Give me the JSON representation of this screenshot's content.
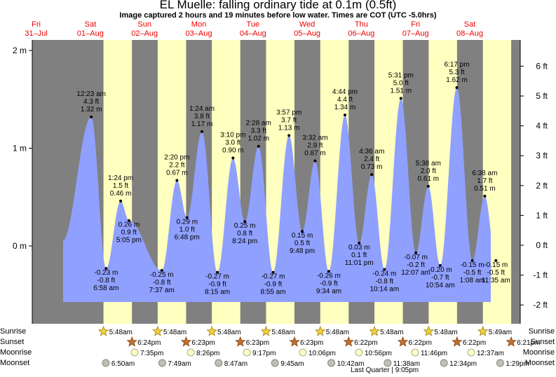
{
  "title": "EL Muelle: falling  ordinary tide at 0.1m (0.5ft)",
  "subtitle": "Image captured 2 hours and 19 minutes before low water. Times are COT (UTC -5.0hrs)",
  "colors": {
    "day": "#ffffc0",
    "night": "#808080",
    "water": "#90a0ff",
    "date_text": "#e00000"
  },
  "days": [
    {
      "name": "Fri",
      "date": "31–Jul"
    },
    {
      "name": "Sat",
      "date": "01–Aug"
    },
    {
      "name": "Sun",
      "date": "02–Aug"
    },
    {
      "name": "Mon",
      "date": "03–Aug"
    },
    {
      "name": "Tue",
      "date": "04–Aug"
    },
    {
      "name": "Wed",
      "date": "05–Aug"
    },
    {
      "name": "Thu",
      "date": "06–Aug"
    },
    {
      "name": "Fri",
      "date": "07–Aug"
    },
    {
      "name": "Sat",
      "date": "08–Aug"
    }
  ],
  "left_axis": {
    "unit": "m",
    "ticks": [
      "2 m",
      "1 m",
      "0 m"
    ]
  },
  "right_axis": {
    "unit": "ft",
    "ticks": [
      "6 ft",
      "5 ft",
      "4 ft",
      "3 ft",
      "2 ft",
      "1 ft",
      "0 ft",
      "-1 ft",
      "-2 ft"
    ]
  },
  "chart_data": {
    "type": "area",
    "ylabel_left": "m",
    "ylabel_right": "ft",
    "ylim_m": [
      -0.6,
      2.0
    ],
    "now_height_m": 0.1,
    "tides": [
      {
        "time": "6:58 am",
        "day": "01–Aug",
        "m": -0.23,
        "ft": "-0.8 ft",
        "m_label": "-0.23 m",
        "type": "low"
      },
      {
        "time": "12:23 am",
        "day": "01–Aug",
        "m": 1.32,
        "ft": "4.3 ft",
        "m_label": "1.32 m",
        "type": "high"
      },
      {
        "time": "1:24 pm",
        "day": "01–Aug",
        "m": 0.46,
        "ft": "1.5 ft",
        "m_label": "0.46 m",
        "type": "high"
      },
      {
        "time": "5:05 pm",
        "day": "01–Aug",
        "m": 0.26,
        "ft": "0.9 ft",
        "m_label": "0.26 m",
        "type": "low"
      },
      {
        "time": "7:37 am",
        "day": "02–Aug",
        "m": -0.25,
        "ft": "-0.8 ft",
        "m_label": "-0.25 m",
        "type": "low"
      },
      {
        "time": "2:20 pm",
        "day": "02–Aug",
        "m": 0.67,
        "ft": "2.2 ft",
        "m_label": "0.67 m",
        "type": "high"
      },
      {
        "time": "6:48 pm",
        "day": "02–Aug",
        "m": 0.29,
        "ft": "1.0 ft",
        "m_label": "0.29 m",
        "type": "low"
      },
      {
        "time": "1:24 am",
        "day": "03–Aug",
        "m": 1.17,
        "ft": "3.8 ft",
        "m_label": "1.17 m",
        "type": "high"
      },
      {
        "time": "8:15 am",
        "day": "03–Aug",
        "m": -0.27,
        "ft": "-0.9 ft",
        "m_label": "-0.27 m",
        "type": "low"
      },
      {
        "time": "3:10 pm",
        "day": "03–Aug",
        "m": 0.9,
        "ft": "3.0 ft",
        "m_label": "0.90 m",
        "type": "high"
      },
      {
        "time": "8:24 pm",
        "day": "03–Aug",
        "m": 0.25,
        "ft": "0.8 ft",
        "m_label": "0.25 m",
        "type": "low"
      },
      {
        "time": "2:28 am",
        "day": "04–Aug",
        "m": 1.02,
        "ft": "3.3 ft",
        "m_label": "1.02 m",
        "type": "high"
      },
      {
        "time": "8:55 am",
        "day": "04–Aug",
        "m": -0.27,
        "ft": "-0.9 ft",
        "m_label": "-0.27 m",
        "type": "low"
      },
      {
        "time": "3:57 pm",
        "day": "04–Aug",
        "m": 1.13,
        "ft": "3.7 ft",
        "m_label": "1.13 m",
        "type": "high"
      },
      {
        "time": "9:48 pm",
        "day": "04–Aug",
        "m": 0.15,
        "ft": "0.5 ft",
        "m_label": "0.15 m",
        "type": "low"
      },
      {
        "time": "3:32 am",
        "day": "05–Aug",
        "m": 0.87,
        "ft": "2.9 ft",
        "m_label": "0.87 m",
        "type": "high"
      },
      {
        "time": "9:34 am",
        "day": "05–Aug",
        "m": -0.26,
        "ft": "-0.9 ft",
        "m_label": "-0.26 m",
        "type": "low"
      },
      {
        "time": "4:44 pm",
        "day": "05–Aug",
        "m": 1.34,
        "ft": "4.4 ft",
        "m_label": "1.34 m",
        "type": "high"
      },
      {
        "time": "11:01 pm",
        "day": "05–Aug",
        "m": 0.03,
        "ft": "0.1 ft",
        "m_label": "0.03 m",
        "type": "low"
      },
      {
        "time": "4:36 am",
        "day": "06–Aug",
        "m": 0.73,
        "ft": "2.4 ft",
        "m_label": "0.73 m",
        "type": "high"
      },
      {
        "time": "10:14 am",
        "day": "06–Aug",
        "m": -0.24,
        "ft": "-0.8 ft",
        "m_label": "-0.24 m",
        "type": "low"
      },
      {
        "time": "5:31 pm",
        "day": "06–Aug",
        "m": 1.51,
        "ft": "5.0 ft",
        "m_label": "1.51 m",
        "type": "high"
      },
      {
        "time": "12:07 am",
        "day": "07–Aug",
        "m": -0.07,
        "ft": "-0.2 ft",
        "m_label": "-0.07 m",
        "type": "low"
      },
      {
        "time": "5:38 am",
        "day": "07–Aug",
        "m": 0.61,
        "ft": "2.0 ft",
        "m_label": "0.61 m",
        "type": "high"
      },
      {
        "time": "10:54 am",
        "day": "07–Aug",
        "m": -0.2,
        "ft": "-0.7 ft",
        "m_label": "-0.20 m",
        "type": "low"
      },
      {
        "time": "6:17 pm",
        "day": "07–Aug",
        "m": 1.62,
        "ft": "5.3 ft",
        "m_label": "1.62 m",
        "type": "high"
      },
      {
        "time": "1:08 am",
        "day": "08–Aug",
        "m": -0.15,
        "ft": "-0.5 ft",
        "m_label": "-0.15 m",
        "type": "low"
      },
      {
        "time": "6:38 am",
        "day": "08–Aug",
        "m": 0.51,
        "ft": "1.7 ft",
        "m_label": "0.51 m",
        "type": "high"
      },
      {
        "time": "11:35 am",
        "day": "08–Aug",
        "m": -0.15,
        "ft": "-0.5 ft",
        "m_label": "-0.15 m",
        "type": "low"
      }
    ]
  },
  "events": {
    "labels": {
      "sunrise": "Sunrise",
      "sunset": "Sunset",
      "moonrise": "Moonrise",
      "moonset": "Moonset"
    },
    "sunrise": [
      "5:48am",
      "5:48am",
      "5:48am",
      "5:48am",
      "5:48am",
      "5:48am",
      "5:48am",
      "5:49am"
    ],
    "sunset": [
      "6:24pm",
      "6:23pm",
      "6:23pm",
      "6:23pm",
      "6:22pm",
      "6:22pm",
      "6:22pm",
      "6:21pm"
    ],
    "moonrise": [
      "7:35pm",
      "8:26pm",
      "9:17pm",
      "10:06pm",
      "10:56pm",
      "11:46pm",
      "12:37am"
    ],
    "moonset": [
      "6:50am",
      "7:49am",
      "8:47am",
      "9:45am",
      "10:42am",
      "11:38am",
      "12:34pm",
      "1:29pm"
    ],
    "moon_phase": "Last Quarter | 9:05pm"
  }
}
